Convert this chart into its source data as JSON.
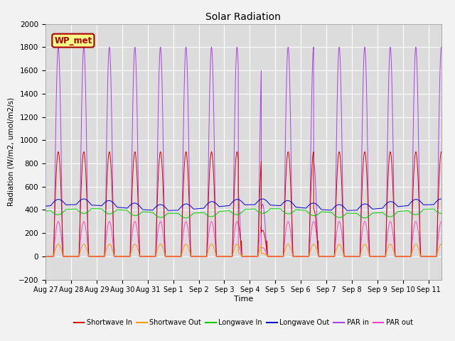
{
  "title": "Solar Radiation",
  "ylabel": "Radiation (W/m2, umol/m2/s)",
  "xlabel": "Time",
  "ylim": [
    -200,
    2000
  ],
  "yticks": [
    -200,
    0,
    200,
    400,
    600,
    800,
    1000,
    1200,
    1400,
    1600,
    1800,
    2000
  ],
  "num_days": 15.5,
  "tick_labels": [
    "Aug 27",
    "Aug 28",
    "Aug 29",
    "Aug 30",
    "Aug 31",
    "Sep 1",
    "Sep 2",
    "Sep 3",
    "Sep 4",
    "Sep 5",
    "Sep 6",
    "Sep 7",
    "Sep 8",
    "Sep 9",
    "Sep 10",
    "Sep 11"
  ],
  "legend": [
    {
      "label": "Shortwave In",
      "color": "#dd0000"
    },
    {
      "label": "Shortwave Out",
      "color": "#ff9900"
    },
    {
      "label": "Longwave In",
      "color": "#00cc00"
    },
    {
      "label": "Longwave Out",
      "color": "#0000cc"
    },
    {
      "label": "PAR in",
      "color": "#aa44dd"
    },
    {
      "label": "PAR out",
      "color": "#ff44cc"
    }
  ],
  "annotation_text": "WP_met",
  "annotation_color": "#aa0000",
  "annotation_bg": "#ffff88",
  "plot_bg": "#dcdcdc",
  "fig_bg": "#f2f2f2",
  "grid_color": "#ffffff",
  "figsize": [
    6.4,
    4.8
  ],
  "dpi": 100
}
